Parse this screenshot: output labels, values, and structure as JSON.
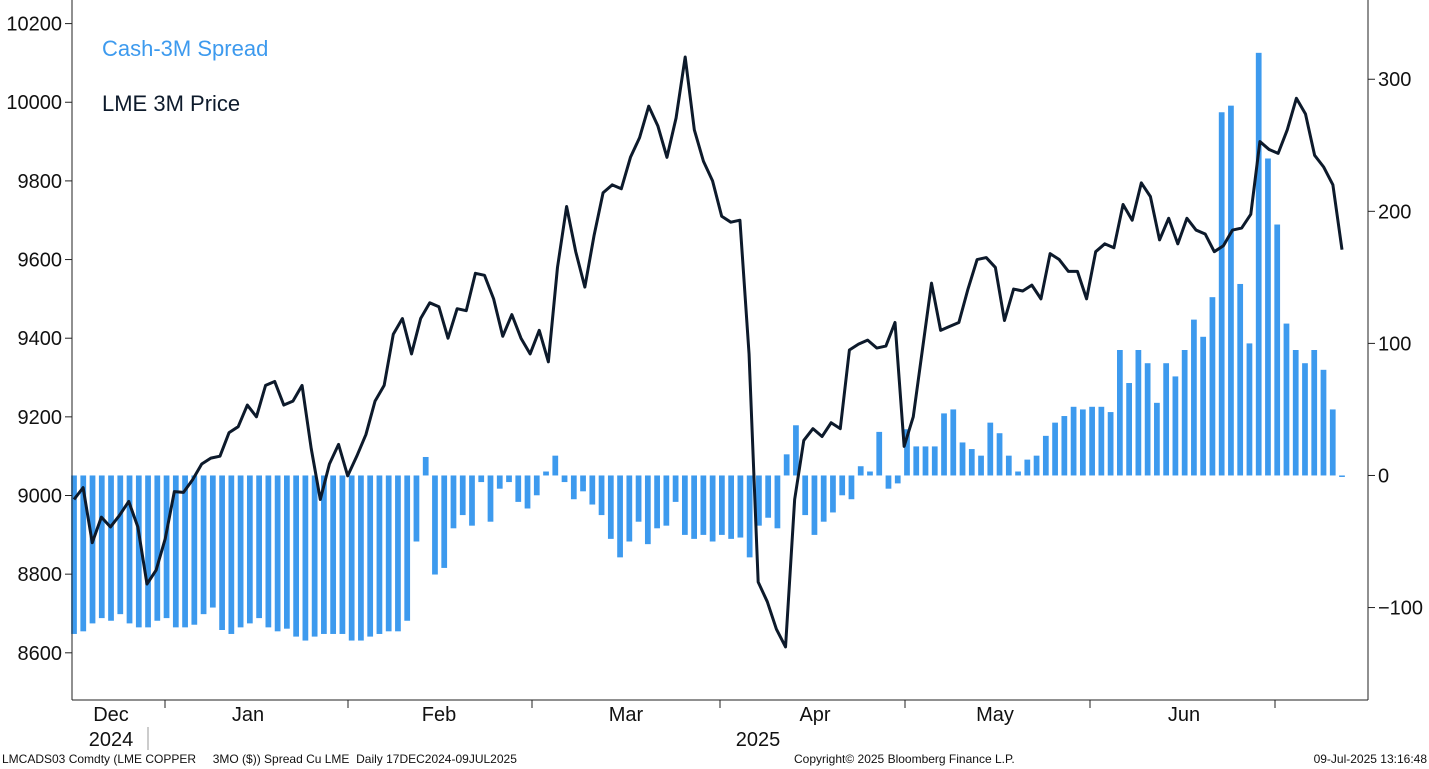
{
  "chart_data": {
    "type": "bar+line",
    "left_axis": {
      "ticks": [
        8600,
        8800,
        9000,
        9200,
        9400,
        9600,
        9800,
        10000,
        10200
      ],
      "ylim": [
        8480,
        10260
      ]
    },
    "right_axis": {
      "ticks": [
        -100,
        0,
        100,
        200,
        300
      ],
      "ylim": [
        -170,
        360
      ]
    },
    "x_labels": [
      "Dec",
      "Jan",
      "Feb",
      "Mar",
      "Apr",
      "May",
      "Jun"
    ],
    "year_labels": [
      "2024",
      "2025"
    ],
    "legend": [
      {
        "name": "Cash-3M Spread",
        "color": "#3d9aee"
      },
      {
        "name": "LME 3M Price",
        "color": "#0d1a2b"
      }
    ],
    "series": [
      {
        "name": "Cash-3M Spread",
        "axis": "right",
        "type": "bar",
        "color": "#3d9aee",
        "values": [
          -120,
          -118,
          -112,
          -108,
          -110,
          -105,
          -112,
          -115,
          -115,
          -110,
          -108,
          -115,
          -115,
          -113,
          -105,
          -100,
          -117,
          -120,
          -115,
          -112,
          -108,
          -115,
          -118,
          -116,
          -122,
          -125,
          -122,
          -120,
          -120,
          -120,
          -125,
          -125,
          -122,
          -120,
          -118,
          -118,
          -110,
          -50,
          14,
          -75,
          -70,
          -40,
          -30,
          -38,
          -5,
          -35,
          -10,
          -5,
          -20,
          -25,
          -15,
          3,
          15,
          -5,
          -18,
          -12,
          -22,
          -30,
          -48,
          -62,
          -50,
          -35,
          -52,
          -40,
          -38,
          -20,
          -45,
          -48,
          -45,
          -50,
          -45,
          -48,
          -47,
          -62,
          -38,
          -32,
          -40,
          16,
          38,
          -30,
          -45,
          -35,
          -28,
          -15,
          -18,
          7,
          3,
          33,
          -10,
          -6,
          35,
          22,
          22,
          22,
          47,
          50,
          25,
          20,
          15,
          40,
          32,
          15,
          3,
          12,
          15,
          30,
          40,
          45,
          52,
          50,
          52,
          52,
          48,
          95,
          70,
          95,
          85,
          55,
          85,
          75,
          95,
          118,
          105,
          135,
          275,
          280,
          145,
          100,
          320,
          240,
          190,
          115,
          95,
          85,
          95,
          80,
          50,
          0
        ]
      },
      {
        "name": "LME 3M Price",
        "axis": "left",
        "type": "line",
        "color": "#0d1a2b",
        "values": [
          8990,
          9020,
          8880,
          8945,
          8920,
          8950,
          8985,
          8920,
          8775,
          8810,
          8890,
          9010,
          9008,
          9040,
          9080,
          9095,
          9100,
          9160,
          9175,
          9230,
          9200,
          9280,
          9290,
          9230,
          9240,
          9280,
          9120,
          8990,
          9080,
          9130,
          9050,
          9100,
          9155,
          9240,
          9280,
          9410,
          9450,
          9360,
          9450,
          9490,
          9480,
          9400,
          9475,
          9470,
          9565,
          9560,
          9500,
          9405,
          9460,
          9400,
          9360,
          9420,
          9340,
          9580,
          9735,
          9620,
          9530,
          9660,
          9770,
          9790,
          9780,
          9860,
          9910,
          9990,
          9940,
          9860,
          9960,
          10115,
          9930,
          9850,
          9800,
          9710,
          9695,
          9700,
          9360,
          8780,
          8730,
          8660,
          8615,
          8990,
          9140,
          9170,
          9150,
          9185,
          9170,
          9370,
          9385,
          9395,
          9375,
          9380,
          9440,
          9125,
          9200,
          9370,
          9540,
          9420,
          9430,
          9440,
          9525,
          9600,
          9605,
          9580,
          9445,
          9525,
          9520,
          9535,
          9500,
          9615,
          9600,
          9570,
          9570,
          9500,
          9620,
          9640,
          9630,
          9740,
          9700,
          9795,
          9760,
          9650,
          9705,
          9640,
          9705,
          9675,
          9665,
          9620,
          9635,
          9675,
          9680,
          9715,
          9900,
          9880,
          9870,
          9930,
          10010,
          9970,
          9865,
          9835,
          9790,
          9625
        ]
      }
    ],
    "footer": {
      "left": "LMCADS03 Comdty (LME COPPER     3MO ($)) Spread Cu LME  Daily 17DEC2024-09JUL2025",
      "center": "Copyright© 2025 Bloomberg Finance L.P.",
      "right": "09-Jul-2025 13:16:48"
    }
  }
}
